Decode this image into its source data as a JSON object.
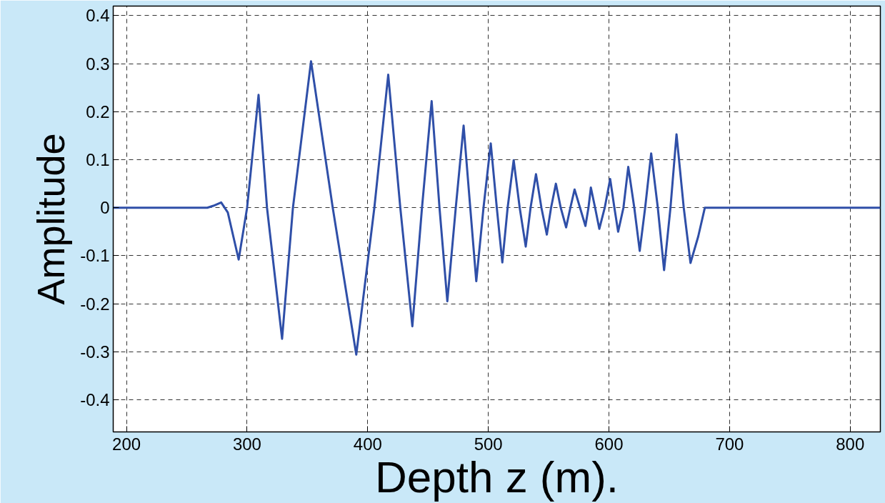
{
  "chart_data": {
    "type": "line",
    "xlabel": "Depth z (m).",
    "ylabel": "Amplitude",
    "x": [
      189,
      267,
      272,
      278.5,
      284,
      293,
      300,
      309.5,
      316.5,
      329,
      338,
      353,
      371,
      390.5,
      405.5,
      417,
      427,
      437,
      445,
      453,
      459.5,
      466,
      473,
      479.5,
      485,
      490,
      496,
      502,
      507,
      511.6,
      516,
      521,
      526,
      531,
      535,
      539.5,
      544,
      548.5,
      552,
      556,
      560,
      564.5,
      568,
      571.5,
      576,
      580.5,
      583,
      585,
      588.5,
      592,
      596.5,
      601,
      604.5,
      607.6,
      612,
      616,
      621,
      625.5,
      630,
      635,
      640.5,
      645.7,
      651,
      656,
      662,
      667.6,
      674,
      679.5,
      686,
      825
    ],
    "series": [
      {
        "color": "#2f4fa8",
        "values": [
          0,
          0,
          0.004,
          0.011,
          -0.01,
          -0.108,
          0,
          0.235,
          0,
          -0.273,
          0,
          0.305,
          0,
          -0.306,
          0,
          0.277,
          0,
          -0.247,
          0,
          0.222,
          0,
          -0.195,
          0,
          0.171,
          0,
          -0.153,
          0,
          0.134,
          0,
          -0.114,
          0,
          0.099,
          0,
          -0.081,
          0,
          0.07,
          0,
          -0.056,
          0,
          0.05,
          0,
          -0.041,
          0,
          0.038,
          0,
          -0.038,
          0,
          0.042,
          0,
          -0.044,
          0,
          0.06,
          0,
          -0.05,
          0,
          0.085,
          0,
          -0.09,
          0,
          0.113,
          0,
          -0.13,
          0,
          0.153,
          0,
          -0.115,
          -0.06,
          0,
          0,
          0
        ]
      }
    ],
    "xlim": [
      189,
      825
    ],
    "ylim": [
      -0.467,
      0.42
    ],
    "xticks": [
      200,
      300,
      400,
      500,
      600,
      700,
      800
    ],
    "yticks": [
      0.4,
      0.3,
      0.2,
      0.1,
      0,
      -0.1,
      -0.2,
      -0.3,
      -0.4
    ],
    "grid": true,
    "line_style": "solid",
    "marker": "none"
  }
}
